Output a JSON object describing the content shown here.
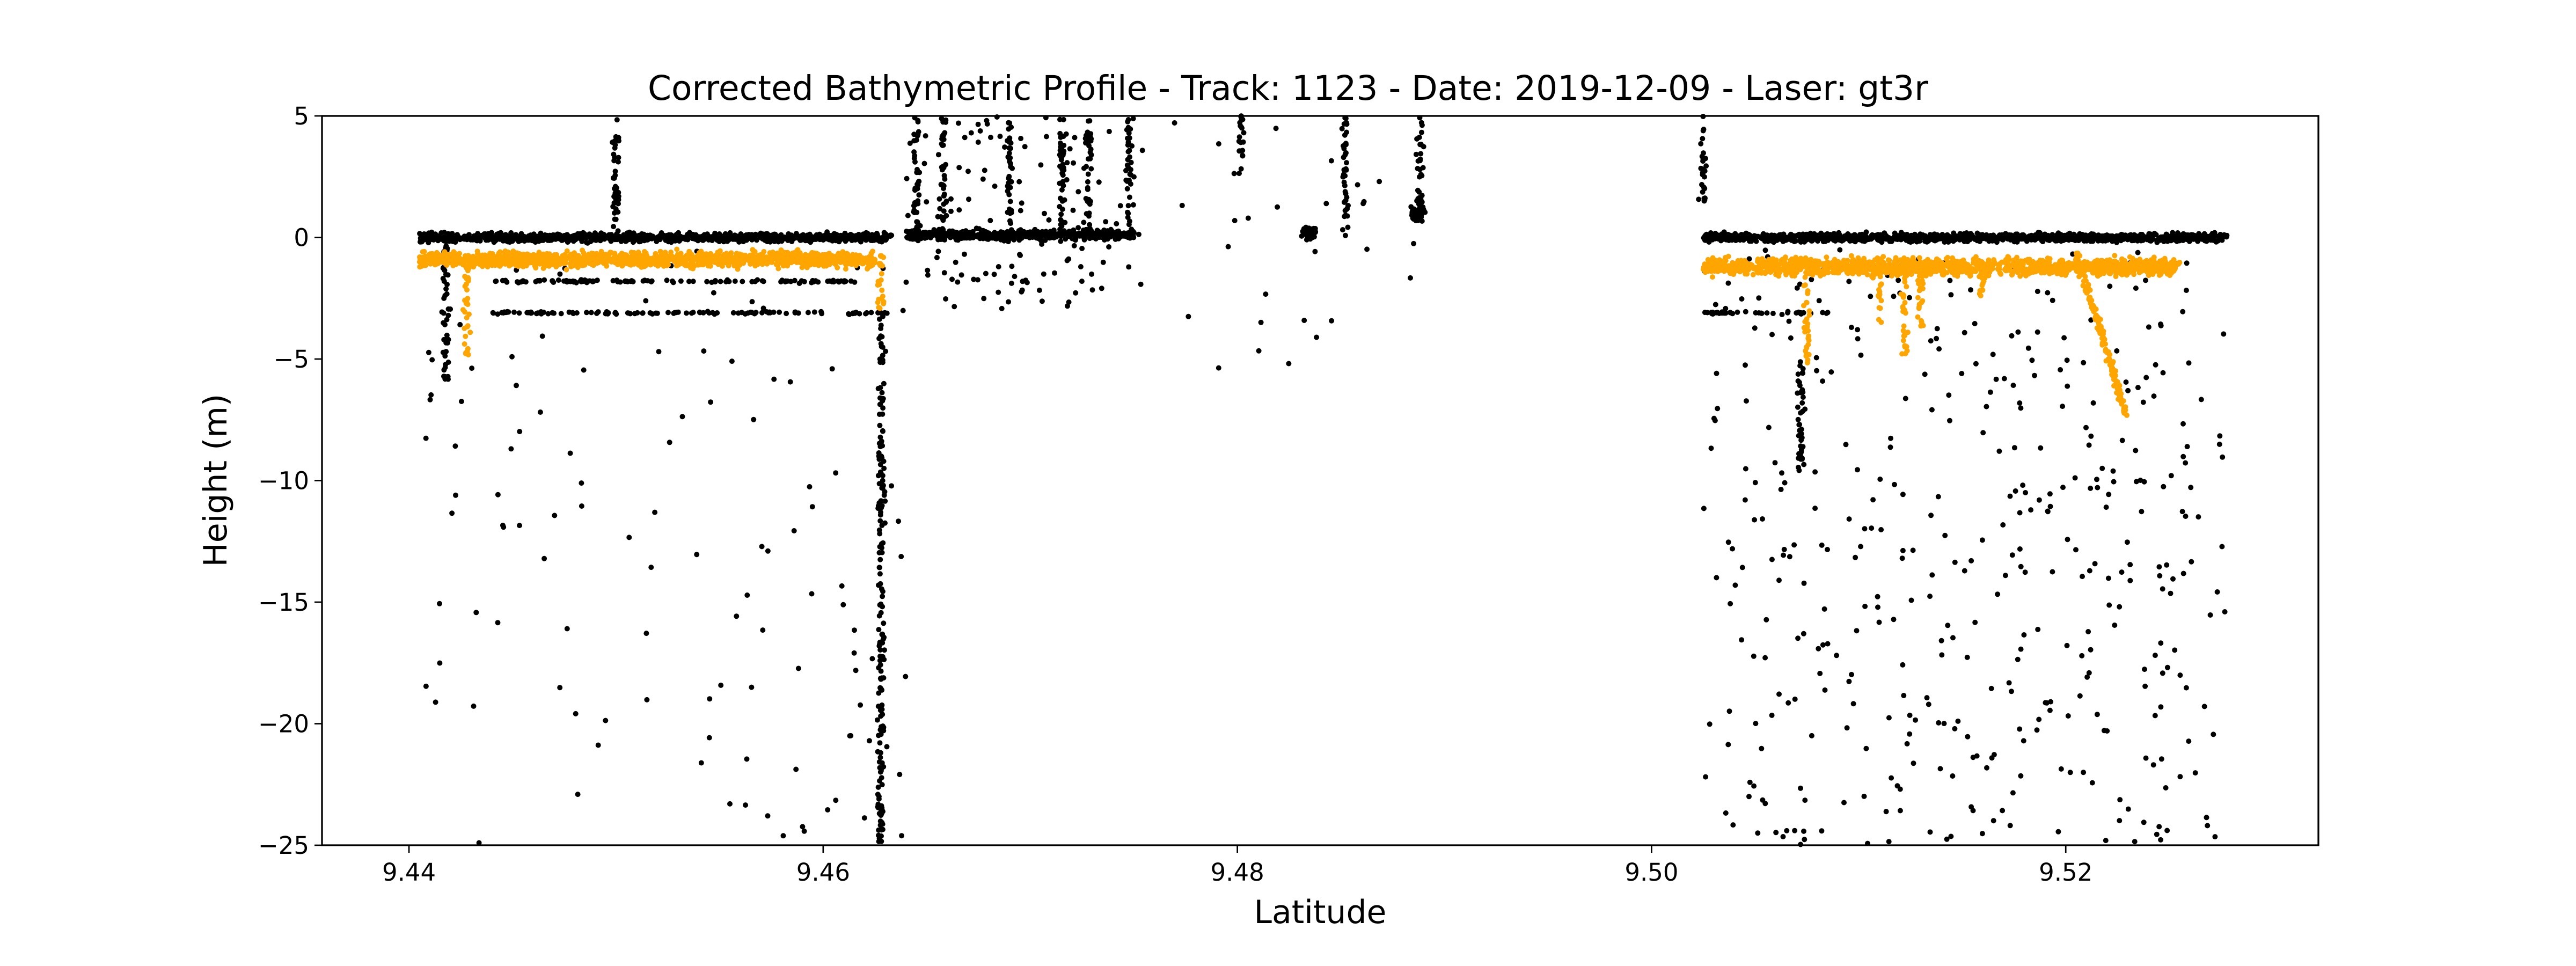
{
  "chart_data": {
    "type": "scatter",
    "title": "Corrected Bathymetric Profile - Track: 1123 - Date: 2019-12-09 - Laser: gt3r",
    "xlabel": "Latitude",
    "ylabel": "Height (m)",
    "xlim": [
      9.4358,
      9.5322
    ],
    "ylim": [
      -25,
      5
    ],
    "xticks": [
      9.44,
      9.46,
      9.48,
      9.5,
      9.52
    ],
    "xtick_labels": [
      "9.44",
      "9.46",
      "9.48",
      "9.50",
      "9.52"
    ],
    "yticks": [
      5,
      0,
      -5,
      -10,
      -15,
      -20,
      -25
    ],
    "ytick_labels": [
      "5",
      "0",
      "−5",
      "−10",
      "−15",
      "−20",
      "−25"
    ],
    "grid": false,
    "legend": "none",
    "series": [
      {
        "color": "#000000",
        "marker": "dot",
        "segments": [
          {
            "kind": "surface",
            "x0": 9.4405,
            "x1": 9.4633,
            "y": 0.0,
            "jitter": 0.25
          },
          {
            "kind": "surface",
            "x0": 9.5025,
            "x1": 9.5278,
            "y": 0.0,
            "jitter": 0.25
          },
          {
            "kind": "surface",
            "x0": 9.464,
            "x1": 9.475,
            "y": 0.1,
            "jitter": 0.3
          },
          {
            "kind": "clump",
            "x": 9.4835,
            "y": 0.2,
            "spread": 0.4
          },
          {
            "kind": "clump",
            "x": 9.4887,
            "y": 1.0,
            "spread": 0.4
          },
          {
            "kind": "line",
            "x0": 9.444,
            "x1": 9.4633,
            "y": -3.1
          },
          {
            "kind": "line",
            "x0": 9.5025,
            "x1": 9.509,
            "y": -3.1
          },
          {
            "kind": "line",
            "x0": 9.444,
            "x1": 9.462,
            "y": -1.8
          },
          {
            "kind": "column",
            "x": 9.4628,
            "y0": -25.0,
            "y1": -3.0
          },
          {
            "kind": "column",
            "x": 9.45,
            "y0": 0.0,
            "y1": 5.0
          },
          {
            "kind": "column",
            "x": 9.4645,
            "y0": 0.0,
            "y1": 5.0
          },
          {
            "kind": "column",
            "x": 9.4658,
            "y0": 0.0,
            "y1": 5.0
          },
          {
            "kind": "column",
            "x": 9.469,
            "y0": 0.0,
            "y1": 5.0
          },
          {
            "kind": "column",
            "x": 9.4715,
            "y0": 0.0,
            "y1": 5.0
          },
          {
            "kind": "column",
            "x": 9.4728,
            "y0": 0.0,
            "y1": 5.0
          },
          {
            "kind": "column",
            "x": 9.4748,
            "y0": 0.0,
            "y1": 5.0
          },
          {
            "kind": "column",
            "x": 9.4802,
            "y0": 2.5,
            "y1": 5.0
          },
          {
            "kind": "column",
            "x": 9.4852,
            "y0": 0.0,
            "y1": 5.0
          },
          {
            "kind": "column",
            "x": 9.4888,
            "y0": 1.0,
            "y1": 5.0
          },
          {
            "kind": "column",
            "x": 9.5025,
            "y0": 1.5,
            "y1": 5.0
          },
          {
            "kind": "column",
            "x": 9.4418,
            "y0": -6.0,
            "y1": 0.0
          },
          {
            "kind": "column",
            "x": 9.5072,
            "y0": -10.0,
            "y1": -5.0
          }
        ],
        "scatter_regions": [
          {
            "x0": 9.4405,
            "x1": 9.464,
            "y0": -25.0,
            "y1": -0.5,
            "count": 120
          },
          {
            "x0": 9.5025,
            "x1": 9.528,
            "y0": -25.0,
            "y1": -0.5,
            "count": 420
          },
          {
            "x0": 9.464,
            "x1": 9.4755,
            "y0": -3.0,
            "y1": 5.0,
            "count": 140
          },
          {
            "x0": 9.476,
            "x1": 9.489,
            "y0": -6.0,
            "y1": 5.0,
            "count": 30
          }
        ]
      },
      {
        "color": "#FFA500",
        "marker": "dot",
        "segments": [
          {
            "kind": "band",
            "x0": 9.4405,
            "x1": 9.4625,
            "y": -0.9,
            "jitter": 0.45
          },
          {
            "kind": "band",
            "x0": 9.5025,
            "x1": 9.5255,
            "y": -1.2,
            "jitter": 0.5
          },
          {
            "kind": "column",
            "x": 9.4428,
            "y0": -5.0,
            "y1": -0.6
          },
          {
            "kind": "column",
            "x": 9.4628,
            "y0": -3.3,
            "y1": -0.6
          },
          {
            "kind": "column",
            "x": 9.5075,
            "y0": -5.2,
            "y1": -0.8
          },
          {
            "kind": "column",
            "x": 9.511,
            "y0": -3.5,
            "y1": -0.8
          },
          {
            "kind": "column",
            "x": 9.5122,
            "y0": -4.8,
            "y1": -0.8
          },
          {
            "kind": "column",
            "x": 9.513,
            "y0": -3.8,
            "y1": -0.8
          },
          {
            "kind": "column",
            "x": 9.516,
            "y0": -2.5,
            "y1": -1.0
          },
          {
            "kind": "slope",
            "x0": 9.5205,
            "x1": 9.523,
            "y0": -0.6,
            "y1": -7.5
          }
        ]
      }
    ]
  }
}
